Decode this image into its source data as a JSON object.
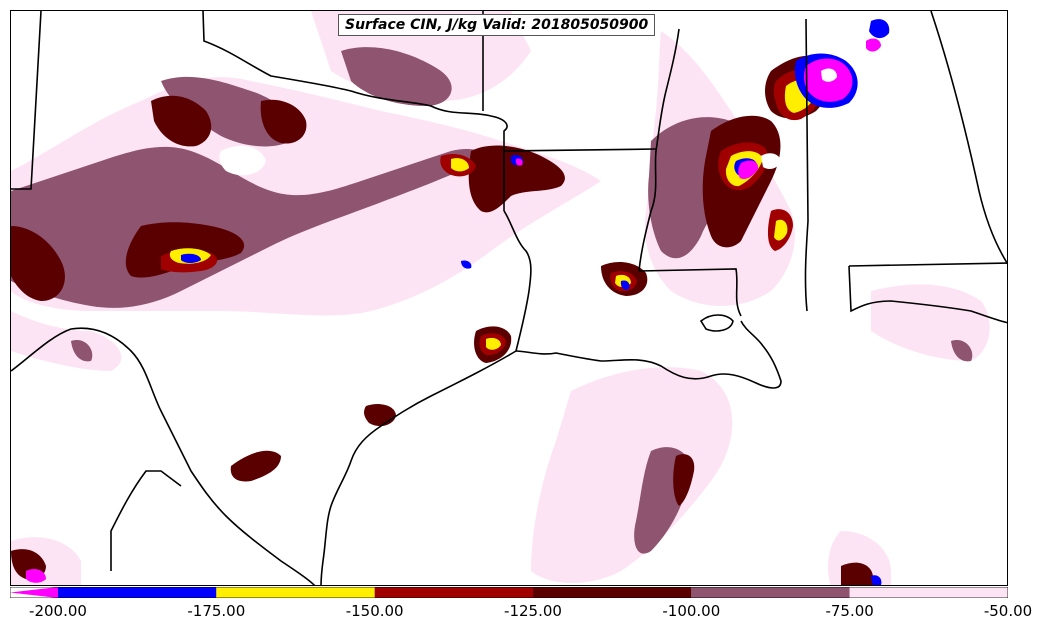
{
  "title": "Surface CIN, J/kg Valid: 201805050900",
  "colorbar": {
    "ticks": [
      "-200.00",
      "-175.00",
      "-150.00",
      "-125.00",
      "-100.00",
      "-75.00",
      "-50.00"
    ],
    "bins": [
      {
        "from": -200,
        "to": -175,
        "color": "#0000ff"
      },
      {
        "from": -175,
        "to": -150,
        "color": "#ffee00"
      },
      {
        "from": -150,
        "to": -125,
        "color": "#a00000"
      },
      {
        "from": -125,
        "to": -100,
        "color": "#5a0000"
      },
      {
        "from": -100,
        "to": -75,
        "color": "#8e5470"
      },
      {
        "from": -75,
        "to": -50,
        "color": "#fde4f4"
      }
    ],
    "under_color": "#ff00ff"
  },
  "colors": {
    "light_pink": "#fde4f4",
    "mauve": "#8e5470",
    "dark_maroon": "#5a0000",
    "red": "#a00000",
    "yellow": "#ffee00",
    "blue": "#0000ff",
    "magenta": "#ff00ff"
  }
}
